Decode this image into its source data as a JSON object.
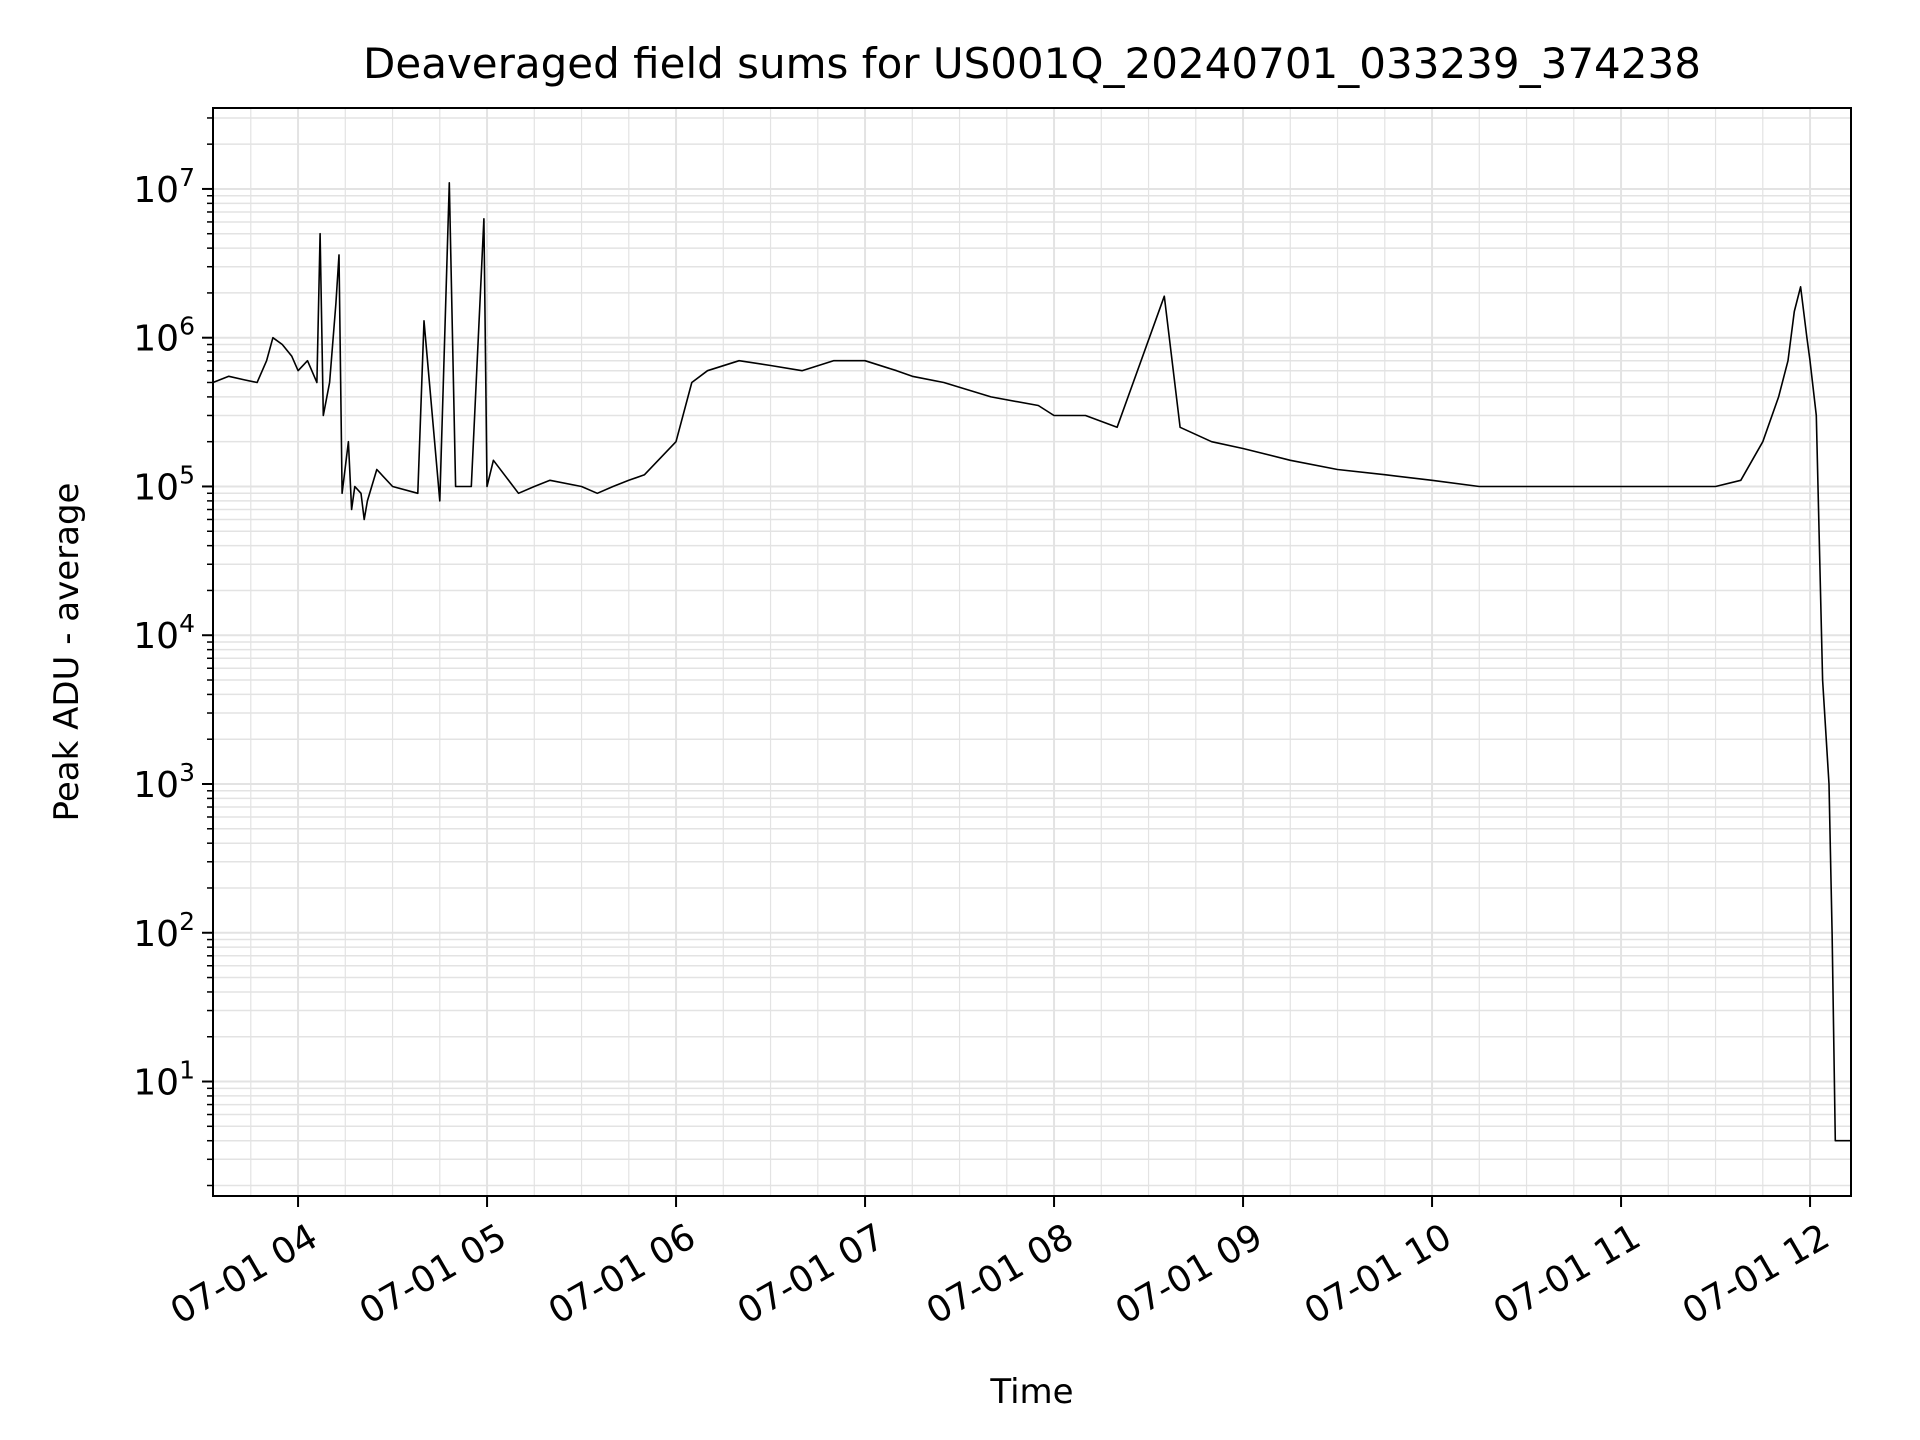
{
  "chart_data": {
    "type": "line",
    "title": "Deaveraged field sums for US001Q_20240701_033239_374238",
    "xlabel": "Time",
    "ylabel": "Peak ADU - average",
    "yscale": "log",
    "ylim": [
      1.7,
      35000000
    ],
    "xlim": [
      "2024-07-01 03:33",
      "2024-07-01 12:13"
    ],
    "grid": true,
    "line_color": "#000000",
    "grid_color": "#e3e3e3",
    "x_ticks": [
      {
        "value": "2024-07-01 04:00",
        "label": "07-01 04"
      },
      {
        "value": "2024-07-01 05:00",
        "label": "07-01 05"
      },
      {
        "value": "2024-07-01 06:00",
        "label": "07-01 06"
      },
      {
        "value": "2024-07-01 07:00",
        "label": "07-01 07"
      },
      {
        "value": "2024-07-01 08:00",
        "label": "07-01 08"
      },
      {
        "value": "2024-07-01 09:00",
        "label": "07-01 09"
      },
      {
        "value": "2024-07-01 10:00",
        "label": "07-01 10"
      },
      {
        "value": "2024-07-01 11:00",
        "label": "07-01 11"
      },
      {
        "value": "2024-07-01 12:00",
        "label": "07-01 12"
      }
    ],
    "y_ticks": [
      {
        "value": 10,
        "base": "10",
        "exp": "1"
      },
      {
        "value": 100,
        "base": "10",
        "exp": "2"
      },
      {
        "value": 1000,
        "base": "10",
        "exp": "3"
      },
      {
        "value": 10000,
        "base": "10",
        "exp": "4"
      },
      {
        "value": 100000,
        "base": "10",
        "exp": "5"
      },
      {
        "value": 1000000,
        "base": "10",
        "exp": "6"
      },
      {
        "value": 10000000,
        "base": "10",
        "exp": "7"
      }
    ],
    "series": [
      {
        "x": [
          "2024-07-01 03:33",
          "2024-07-01 03:38",
          "2024-07-01 03:43",
          "2024-07-01 03:47",
          "2024-07-01 03:50",
          "2024-07-01 03:52",
          "2024-07-01 03:55",
          "2024-07-01 03:58",
          "2024-07-01 04:00",
          "2024-07-01 04:03",
          "2024-07-01 04:06",
          "2024-07-01 04:07",
          "2024-07-01 04:08",
          "2024-07-01 04:10",
          "2024-07-01 04:12",
          "2024-07-01 04:13",
          "2024-07-01 04:14",
          "2024-07-01 04:16",
          "2024-07-01 04:17",
          "2024-07-01 04:18",
          "2024-07-01 04:20",
          "2024-07-01 04:21",
          "2024-07-01 04:22",
          "2024-07-01 04:25",
          "2024-07-01 04:30",
          "2024-07-01 04:38",
          "2024-07-01 04:40",
          "2024-07-01 04:45",
          "2024-07-01 04:48",
          "2024-07-01 04:50",
          "2024-07-01 04:55",
          "2024-07-01 04:59",
          "2024-07-01 05:00",
          "2024-07-01 05:02",
          "2024-07-01 05:10",
          "2024-07-01 05:15",
          "2024-07-01 05:20",
          "2024-07-01 05:30",
          "2024-07-01 05:35",
          "2024-07-01 05:40",
          "2024-07-01 05:45",
          "2024-07-01 05:50",
          "2024-07-01 06:00",
          "2024-07-01 06:05",
          "2024-07-01 06:10",
          "2024-07-01 06:20",
          "2024-07-01 06:30",
          "2024-07-01 06:40",
          "2024-07-01 06:50",
          "2024-07-01 07:00",
          "2024-07-01 07:10",
          "2024-07-01 07:15",
          "2024-07-01 07:25",
          "2024-07-01 07:40",
          "2024-07-01 07:55",
          "2024-07-01 08:00",
          "2024-07-01 08:10",
          "2024-07-01 08:20",
          "2024-07-01 08:35",
          "2024-07-01 08:40",
          "2024-07-01 08:50",
          "2024-07-01 09:00",
          "2024-07-01 09:15",
          "2024-07-01 09:30",
          "2024-07-01 09:45",
          "2024-07-01 10:00",
          "2024-07-01 10:15",
          "2024-07-01 10:30",
          "2024-07-01 10:45",
          "2024-07-01 11:00",
          "2024-07-01 11:15",
          "2024-07-01 11:30",
          "2024-07-01 11:38",
          "2024-07-01 11:45",
          "2024-07-01 11:50",
          "2024-07-01 11:53",
          "2024-07-01 11:55",
          "2024-07-01 11:57",
          "2024-07-01 11:59",
          "2024-07-01 12:00",
          "2024-07-01 12:02",
          "2024-07-01 12:04",
          "2024-07-01 12:06",
          "2024-07-01 12:07",
          "2024-07-01 12:08",
          "2024-07-01 12:13"
        ],
        "y": [
          500000,
          550000,
          520000,
          500000,
          700000,
          1000000,
          900000,
          750000,
          600000,
          700000,
          500000,
          5000000,
          300000,
          500000,
          1700000,
          3600000,
          90000,
          200000,
          70000,
          100000,
          90000,
          60000,
          80000,
          130000,
          100000,
          90000,
          1300000,
          80000,
          11000000,
          100000,
          100000,
          6300000,
          100000,
          150000,
          90000,
          100000,
          110000,
          100000,
          90000,
          100000,
          110000,
          120000,
          200000,
          500000,
          600000,
          700000,
          650000,
          600000,
          700000,
          700000,
          600000,
          550000,
          500000,
          400000,
          350000,
          300000,
          300000,
          250000,
          1900000,
          250000,
          200000,
          180000,
          150000,
          130000,
          120000,
          110000,
          100000,
          100000,
          100000,
          100000,
          100000,
          100000,
          110000,
          200000,
          400000,
          700000,
          1500000,
          2200000,
          1000000,
          700000,
          300000,
          5000,
          1000,
          100,
          4,
          4
        ]
      }
    ]
  }
}
